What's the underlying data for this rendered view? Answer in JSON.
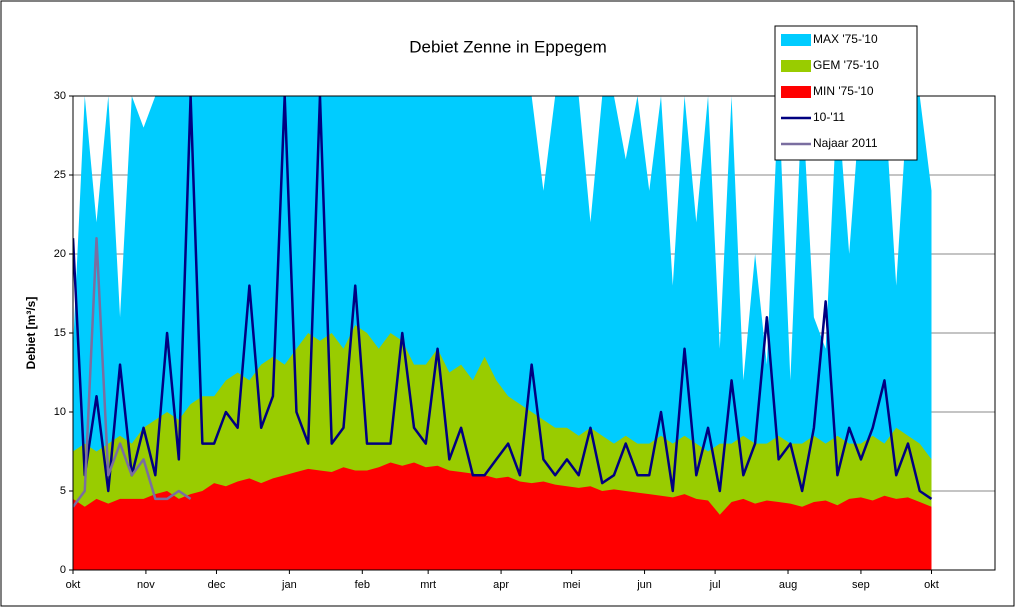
{
  "chart_data": {
    "type": "area",
    "title": "Debiet Zenne in Eppegem",
    "ylabel": "Debiet [m³/s]",
    "xlim": [
      0,
      392
    ],
    "ylim": [
      0,
      30
    ],
    "yticks": [
      0,
      5,
      10,
      15,
      20,
      25,
      30
    ],
    "xticks": [
      {
        "value": 0,
        "label": "okt"
      },
      {
        "value": 31,
        "label": "nov"
      },
      {
        "value": 61,
        "label": "dec"
      },
      {
        "value": 92,
        "label": "jan"
      },
      {
        "value": 123,
        "label": "feb"
      },
      {
        "value": 151,
        "label": "mrt"
      },
      {
        "value": 182,
        "label": "apr"
      },
      {
        "value": 212,
        "label": "mei"
      },
      {
        "value": 243,
        "label": "jun"
      },
      {
        "value": 273,
        "label": "jul"
      },
      {
        "value": 304,
        "label": "aug"
      },
      {
        "value": 335,
        "label": "sep"
      },
      {
        "value": 365,
        "label": "okt"
      }
    ],
    "grid": true,
    "legend": "top-right",
    "x": [
      0,
      5,
      10,
      15,
      20,
      25,
      30,
      35,
      40,
      45,
      50,
      55,
      60,
      65,
      70,
      75,
      80,
      85,
      90,
      95,
      100,
      105,
      110,
      115,
      120,
      125,
      130,
      135,
      140,
      145,
      150,
      155,
      160,
      165,
      170,
      175,
      180,
      185,
      190,
      195,
      200,
      205,
      210,
      215,
      220,
      225,
      230,
      235,
      240,
      245,
      250,
      255,
      260,
      265,
      270,
      275,
      280,
      285,
      290,
      295,
      300,
      305,
      310,
      315,
      320,
      325,
      330,
      335,
      340,
      345,
      350,
      355,
      360,
      365
    ],
    "series": [
      {
        "name": "MAX '75-'10",
        "kind": "area",
        "color": "#00ccff",
        "values": [
          14,
          30,
          22,
          30,
          16,
          30,
          28,
          30,
          30,
          30,
          30,
          30,
          30,
          30,
          30,
          30,
          30,
          30,
          30,
          30,
          30,
          30,
          30,
          30,
          30,
          30,
          30,
          30,
          30,
          30,
          30,
          30,
          30,
          30,
          30,
          30,
          30,
          30,
          30,
          30,
          24,
          30,
          30,
          30,
          22,
          30,
          30,
          26,
          30,
          24,
          30,
          18,
          30,
          22,
          30,
          14,
          30,
          12,
          20,
          13,
          30,
          12,
          30,
          16,
          14,
          30,
          20,
          30,
          28,
          30,
          18,
          30,
          30,
          24
        ]
      },
      {
        "name": "GEM '75-'10",
        "kind": "area",
        "color": "#99cc00",
        "values": [
          7.5,
          8,
          7.5,
          8,
          8.5,
          8,
          9,
          9.5,
          10,
          9.5,
          10.5,
          11,
          11,
          12,
          12.5,
          12,
          13,
          13.5,
          13,
          14,
          15,
          14.5,
          15,
          14,
          15.5,
          15,
          14,
          15,
          14.5,
          13,
          13,
          14,
          12.5,
          13,
          12,
          13.5,
          12,
          11,
          10.5,
          10,
          9.5,
          9,
          9,
          8.5,
          9,
          8.5,
          8,
          8.5,
          8,
          8,
          8.5,
          8,
          8.5,
          8,
          7.5,
          8,
          8,
          8.5,
          8,
          8,
          8.5,
          8,
          8,
          8.5,
          8,
          8.5,
          8,
          8,
          8.5,
          8,
          9,
          8.5,
          8,
          7
        ]
      },
      {
        "name": "MIN '75-'10",
        "kind": "area",
        "color": "#ff0000",
        "values": [
          4.5,
          4,
          4.5,
          4.2,
          4.5,
          4.5,
          4.5,
          4.8,
          5,
          4.5,
          4.8,
          5,
          5.5,
          5.3,
          5.6,
          5.8,
          5.5,
          5.8,
          6,
          6.2,
          6.4,
          6.3,
          6.2,
          6.5,
          6.3,
          6.3,
          6.5,
          6.8,
          6.6,
          6.8,
          6.5,
          6.6,
          6.3,
          6.2,
          6.1,
          6,
          5.8,
          5.9,
          5.6,
          5.5,
          5.6,
          5.4,
          5.3,
          5.2,
          5.3,
          5,
          5.1,
          5,
          4.9,
          4.8,
          4.7,
          4.6,
          4.8,
          4.5,
          4.4,
          3.5,
          4.3,
          4.5,
          4.2,
          4.4,
          4.3,
          4.2,
          4,
          4.3,
          4.4,
          4.1,
          4.5,
          4.6,
          4.4,
          4.7,
          4.5,
          4.6,
          4.3,
          4
        ]
      },
      {
        "name": "10-'11",
        "kind": "line",
        "color": "#000080",
        "values": [
          21,
          6,
          11,
          5,
          13,
          6,
          9,
          6,
          15,
          7,
          30,
          8,
          8,
          10,
          9,
          18,
          9,
          11,
          30,
          10,
          8,
          30,
          8,
          9,
          18,
          8,
          8,
          8,
          15,
          9,
          8,
          14,
          7,
          9,
          6,
          6,
          7,
          8,
          6,
          13,
          7,
          6,
          7,
          6,
          9,
          5.5,
          6,
          8,
          6,
          6,
          10,
          5,
          14,
          6,
          9,
          5,
          12,
          6,
          8,
          16,
          7,
          8,
          5,
          9,
          17,
          6,
          9,
          7,
          9,
          12,
          6,
          8,
          5,
          4.5
        ]
      },
      {
        "name": "Najaar 2011",
        "kind": "line",
        "color": "#7a6ea0",
        "x": [
          0,
          5,
          10,
          15,
          20,
          25,
          30,
          35,
          40,
          45,
          50
        ],
        "values": [
          4,
          5,
          21,
          6,
          8,
          6,
          7,
          4.5,
          4.5,
          5,
          4.5
        ]
      }
    ]
  }
}
